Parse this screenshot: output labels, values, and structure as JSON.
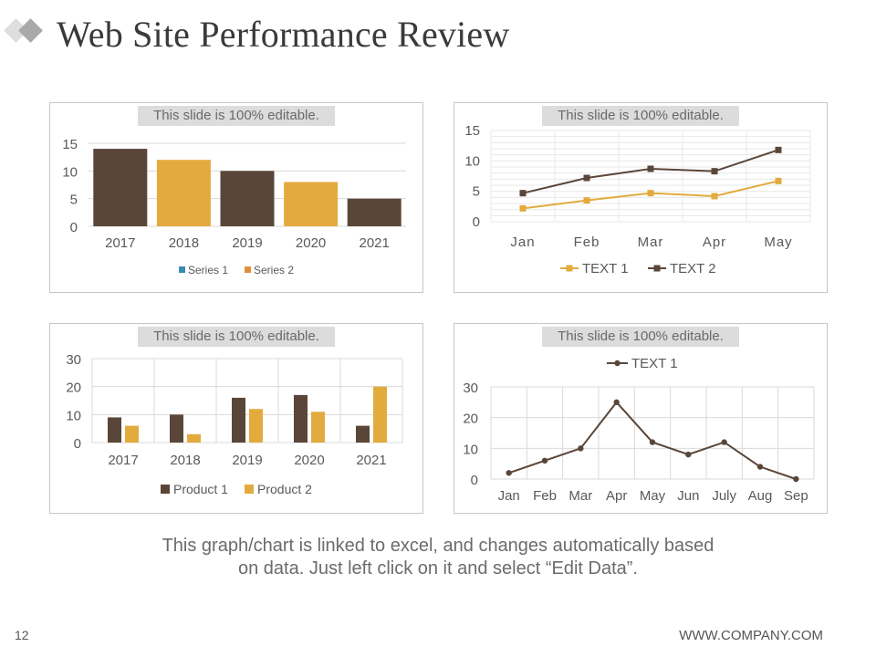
{
  "slide": {
    "title": "Web Site Performance Review",
    "caption_line1": "This graph/chart is linked to excel, and changes automatically based",
    "caption_line2": "on data. Just left click on it and select “Edit Data”.",
    "page_number": "12",
    "website": "WWW.COMPANY.COM",
    "banner_text": "This slide is 100% editable."
  },
  "colors": {
    "brown": "#5a4639",
    "gold": "#e3ab3e",
    "teal": "#3b8bb0",
    "orange": "#e08e3c",
    "grid": "#d9d9d9",
    "axis_text": "#595959"
  },
  "chart_data": [
    {
      "id": "chart1",
      "type": "bar",
      "categories": [
        "2017",
        "2018",
        "2019",
        "2020",
        "2021"
      ],
      "values": [
        14,
        12,
        10,
        8,
        5
      ],
      "ylim": [
        0,
        15
      ],
      "yticks": [
        "0",
        "5",
        "10",
        "15"
      ],
      "legend": [
        "Series 1",
        "Series 2"
      ],
      "legend_position": "bottom"
    },
    {
      "id": "chart2",
      "type": "line",
      "categories": [
        "Jan",
        "Feb",
        "Mar",
        "Apr",
        "May"
      ],
      "series": [
        {
          "name": "TEXT 1",
          "values": [
            2.2,
            3.5,
            4.7,
            4.2,
            6.7
          ]
        },
        {
          "name": "TEXT 2",
          "values": [
            4.7,
            7.2,
            8.7,
            8.3,
            11.8
          ]
        }
      ],
      "ylim": [
        0,
        15
      ],
      "yticks": [
        "0",
        "5",
        "10",
        "15"
      ],
      "legend_position": "bottom"
    },
    {
      "id": "chart3",
      "type": "bar",
      "categories": [
        "2017",
        "2018",
        "2019",
        "2020",
        "2021"
      ],
      "series": [
        {
          "name": "Product 1",
          "values": [
            9,
            10,
            16,
            17,
            6
          ]
        },
        {
          "name": "Product  2",
          "values": [
            6,
            3,
            12,
            11,
            20
          ]
        }
      ],
      "ylim": [
        0,
        30
      ],
      "yticks": [
        "0",
        "10",
        "20",
        "30"
      ],
      "legend_position": "bottom"
    },
    {
      "id": "chart4",
      "type": "line",
      "categories": [
        "Jan",
        "Feb",
        "Mar",
        "Apr",
        "May",
        "Jun",
        "July",
        "Aug",
        "Sep"
      ],
      "series": [
        {
          "name": "TEXT 1",
          "values": [
            2,
            6,
            10,
            25,
            12,
            8,
            12,
            4,
            0
          ]
        }
      ],
      "ylim": [
        0,
        30
      ],
      "yticks": [
        "0",
        "10",
        "20",
        "30"
      ],
      "legend_position": "top"
    }
  ]
}
